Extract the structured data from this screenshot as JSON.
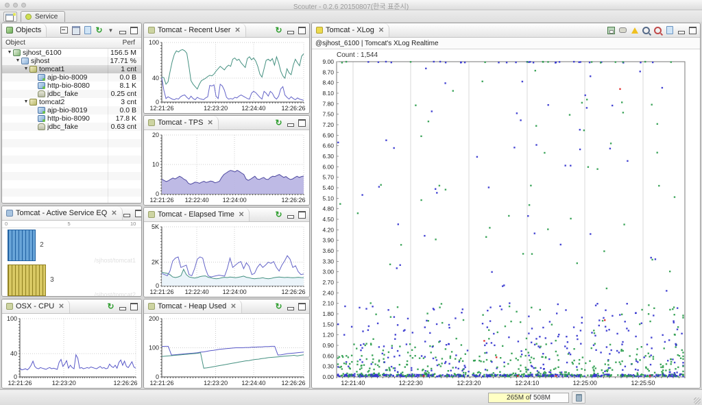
{
  "window": {
    "title": "Scouter - 0.2.6 20150807(한국 표준시)"
  },
  "perspective": {
    "tab_label": "Service"
  },
  "objects_panel": {
    "title": "Objects",
    "columns": {
      "object": "Object",
      "perf": "Perf"
    },
    "tree": [
      {
        "label": "sjhost_6100",
        "perf": "156.5 M",
        "level": 0,
        "expanded": true,
        "icon": "ic-server",
        "selected": false
      },
      {
        "label": "sjhost",
        "perf": "17.71 %",
        "level": 1,
        "expanded": true,
        "icon": "ic-host",
        "selected": false
      },
      {
        "label": "tomcat1",
        "perf": "1 cnt",
        "level": 2,
        "expanded": true,
        "icon": "ic-tomcat",
        "selected": true
      },
      {
        "label": "ajp-bio-8009",
        "perf": "0.0 B",
        "level": 3,
        "icon": "ic-port",
        "selected": false
      },
      {
        "label": "http-bio-8080",
        "perf": "8.1 K",
        "level": 3,
        "icon": "ic-port",
        "selected": false
      },
      {
        "label": "jdbc_fake",
        "perf": "0.25 cnt",
        "level": 3,
        "icon": "ic-db",
        "selected": false
      },
      {
        "label": "tomcat2",
        "perf": "3 cnt",
        "level": 2,
        "expanded": true,
        "icon": "ic-tomcat",
        "selected": false
      },
      {
        "label": "ajp-bio-8019",
        "perf": "0.0 B",
        "level": 3,
        "icon": "ic-port",
        "selected": false
      },
      {
        "label": "http-bio-8090",
        "perf": "17.8 K",
        "level": 3,
        "icon": "ic-port",
        "selected": false
      },
      {
        "label": "jdbc_fake",
        "perf": "0.63 cnt",
        "level": 3,
        "icon": "ic-db",
        "selected": false
      }
    ]
  },
  "views": {
    "recent_user": {
      "title": "Tomcat - Recent User"
    },
    "tps": {
      "title": "Tomcat - TPS"
    },
    "elapsed": {
      "title": "Tomcat - Elapsed Time"
    },
    "heap": {
      "title": "Tomcat - Heap Used"
    },
    "eq": {
      "title": "Tomcat - Active Service EQ"
    },
    "cpu": {
      "title": "OSX - CPU"
    },
    "xlog": {
      "title": "Tomcat - XLog",
      "subtitle": "@sjhost_6100 | Tomcat's XLog Realtime",
      "count_label": "Count : 1,544"
    }
  },
  "status_bar": {
    "heap_label": "265M of 508M"
  },
  "chart_data": {
    "recent_user": {
      "type": "line",
      "ylim": [
        0,
        100
      ],
      "yticks": [
        {
          "v": 0,
          "label": "0"
        },
        {
          "v": 40,
          "label": "40"
        },
        {
          "v": 100,
          "label": "100"
        }
      ],
      "xticks": [
        {
          "f": 0,
          "label": "12:21:26"
        },
        {
          "f": 0.38,
          "label": "12:23:20"
        },
        {
          "f": 0.647,
          "label": "12:24:40"
        },
        {
          "f": 1,
          "label": "12:26:26"
        }
      ],
      "series": [
        {
          "name": "tomcat-recent-user-a",
          "color": "#449080",
          "values": [
            42,
            41,
            30,
            34,
            52,
            68,
            80,
            86,
            84,
            87,
            88,
            86,
            82,
            60,
            36,
            30,
            26,
            22,
            30,
            36,
            38,
            40,
            43,
            45,
            44,
            47,
            52,
            56,
            60,
            57,
            54,
            59,
            62,
            60,
            72,
            74,
            70,
            72,
            66,
            62,
            58,
            73,
            76,
            71,
            74,
            69,
            60,
            47,
            42,
            56,
            70,
            72,
            69,
            73,
            62,
            76,
            66,
            52,
            44,
            40,
            56,
            49,
            46,
            62,
            72,
            66,
            61,
            77,
            81
          ]
        },
        {
          "name": "tomcat-recent-user-b",
          "color": "#6464c8",
          "values": [
            41,
            20,
            6,
            9,
            7,
            5,
            4,
            6,
            5,
            9,
            11,
            12,
            8,
            5,
            10,
            6,
            4,
            8,
            6,
            5,
            4,
            7,
            9,
            28,
            27,
            29,
            10,
            6,
            30,
            27,
            20,
            8,
            5,
            6,
            5,
            8,
            7,
            10,
            12,
            10,
            8,
            6,
            5,
            15,
            18,
            16,
            12,
            8,
            5,
            18,
            15,
            10,
            18,
            15,
            8,
            5,
            10,
            22,
            26,
            12,
            8,
            5,
            9,
            6,
            4,
            7,
            5,
            4,
            3
          ]
        }
      ]
    },
    "tps": {
      "type": "area",
      "ylim": [
        0,
        20
      ],
      "yticks": [
        {
          "v": 0,
          "label": "0"
        },
        {
          "v": 10,
          "label": "10"
        },
        {
          "v": 20,
          "label": "20"
        }
      ],
      "xticks": [
        {
          "f": 0,
          "label": "12:21:26"
        },
        {
          "f": 0.247,
          "label": "12:22:40"
        },
        {
          "f": 0.513,
          "label": "12:24:00"
        },
        {
          "f": 1,
          "label": "12:26:26"
        }
      ],
      "series": [
        {
          "name": "tps",
          "color": "#4f4aa0",
          "fill": "#b7b3e2",
          "values": [
            5,
            4.6,
            4.2,
            4.5,
            5,
            5.4,
            5.1,
            5.5,
            6,
            5.6,
            5,
            4.6,
            3.6,
            3.3,
            3.6,
            4,
            3.9,
            3.6,
            4,
            4.3,
            3.9,
            4.1,
            4.4,
            4.2,
            3.8,
            4,
            4.3,
            5.6,
            6.6,
            7.1,
            7.6,
            8,
            7.8,
            7.5,
            8,
            7.6,
            7.1,
            6.6,
            5.1,
            4.6,
            5,
            5.5,
            6,
            5.1,
            4.9,
            5.3,
            5.6,
            5,
            4.9,
            5.6,
            6,
            5.9,
            6.3,
            6.6,
            6.1,
            5.6,
            5.9,
            5.3,
            4.9,
            5.1,
            5.6,
            6,
            5.6,
            5.9,
            6.1
          ]
        }
      ]
    },
    "elapsed": {
      "type": "line",
      "ylim": [
        0,
        5000
      ],
      "yticks": [
        {
          "v": 0,
          "label": "0"
        },
        {
          "v": 2000,
          "label": "2K"
        },
        {
          "v": 5000,
          "label": "5K"
        }
      ],
      "xticks": [
        {
          "f": 0,
          "label": "12:21:26"
        },
        {
          "f": 0.247,
          "label": "12:22:40"
        },
        {
          "f": 0.513,
          "label": "12:24:00"
        },
        {
          "f": 1,
          "label": "12:26:26"
        }
      ],
      "series": [
        {
          "name": "elapsed-teal",
          "color": "#449080",
          "fill": "#e9f3f9",
          "values": [
            1150,
            1100,
            1050,
            950,
            750,
            700,
            750,
            850,
            1400,
            950,
            750,
            700,
            650,
            700,
            780,
            820,
            840,
            720,
            680,
            620,
            600,
            620,
            680,
            720,
            700,
            740,
            720,
            680,
            720,
            760,
            820,
            720,
            680,
            620,
            600,
            620,
            640,
            680,
            620,
            600,
            620,
            680,
            720,
            740,
            720,
            700,
            720,
            700,
            680,
            700,
            720,
            700,
            690
          ]
        },
        {
          "name": "elapsed-purple",
          "color": "#6464c8",
          "values": [
            1050,
            950,
            850,
            1250,
            2100,
            2350,
            2450,
            1550,
            1650,
            1750,
            950,
            850,
            1450,
            2250,
            2450,
            2350,
            1450,
            850,
            750,
            800,
            850,
            900,
            860,
            820,
            1450,
            2350,
            1550,
            1750,
            1950,
            2050,
            1450,
            1950,
            1650,
            950,
            1050,
            1550,
            1850,
            1550,
            1750,
            2000,
            1900,
            2050,
            1550,
            1250,
            1750,
            2100,
            2550,
            2250,
            1550,
            1700,
            1200,
            950,
            1000
          ]
        }
      ]
    },
    "heap": {
      "type": "line",
      "ylim": [
        0,
        200
      ],
      "yticks": [
        {
          "v": 0,
          "label": "0"
        },
        {
          "v": 100,
          "label": "100"
        },
        {
          "v": 200,
          "label": "200"
        }
      ],
      "xticks": [
        {
          "f": 0,
          "label": "12:21:26"
        },
        {
          "f": 0.38,
          "label": "12:23:20"
        },
        {
          "f": 0.647,
          "label": "12:24:40"
        },
        {
          "f": 1,
          "label": "12:26:26"
        }
      ],
      "series": [
        {
          "name": "heap-tomcat1",
          "color": "#5858c8",
          "values": [
            104,
            105,
            105,
            75,
            76,
            77,
            78,
            79,
            80,
            81,
            82,
            83,
            85,
            86,
            88,
            90,
            91,
            93,
            95,
            96,
            97,
            98,
            99,
            100,
            100,
            100,
            101,
            101,
            102,
            102,
            103,
            103,
            104,
            104,
            105,
            105,
            75,
            76,
            78,
            80,
            81,
            82,
            83,
            84,
            85
          ]
        },
        {
          "name": "heap-tomcat2",
          "color": "#449080",
          "values": [
            70,
            71,
            72,
            73,
            74,
            75,
            76,
            77,
            78,
            79,
            80,
            81,
            83,
            30,
            31,
            33,
            35,
            37,
            39,
            41,
            43,
            45,
            47,
            49,
            51,
            53,
            55,
            56,
            58,
            60,
            61,
            63,
            64,
            66,
            67,
            68,
            69,
            70,
            71,
            72,
            73,
            74,
            72,
            74,
            76
          ]
        }
      ]
    },
    "cpu": {
      "type": "line",
      "ylim": [
        0,
        100
      ],
      "yticks": [
        {
          "v": 0,
          "label": "0"
        },
        {
          "v": 40,
          "label": "40"
        },
        {
          "v": 100,
          "label": "100"
        }
      ],
      "xticks": [
        {
          "f": 0,
          "label": "12:21:26"
        },
        {
          "f": 0.38,
          "label": "12:23:20"
        },
        {
          "f": 1,
          "label": "12:26:26"
        }
      ],
      "series": [
        {
          "name": "osx-cpu",
          "color": "#5858c8",
          "values": [
            15,
            12,
            13,
            14,
            12,
            15,
            20,
            27,
            18,
            15,
            14,
            16,
            15,
            14,
            13,
            15,
            16,
            14,
            15,
            14,
            13,
            25,
            30,
            18,
            22,
            28,
            15,
            20,
            16,
            14,
            38,
            32,
            15,
            16,
            14,
            15,
            16,
            15,
            17,
            16,
            15,
            14,
            16,
            18,
            15,
            16,
            14,
            15,
            22,
            18,
            16,
            20,
            15,
            25,
            29,
            20,
            27,
            18,
            16,
            21,
            26,
            17,
            15
          ]
        }
      ]
    },
    "eq": {
      "type": "bar",
      "orientation": "horizontal",
      "axis": {
        "min": 0,
        "max": 10,
        "ticks": [
          0,
          5,
          10
        ]
      },
      "bars": [
        {
          "value_label": "2",
          "extent": 2.2,
          "fill": "#68a4d8",
          "stripe": "#1f5fa0",
          "instance": "/sjhost/tomcat1"
        },
        {
          "value_label": "3",
          "extent": 3.0,
          "fill": "#d9c964",
          "stripe": "#8f7f1f",
          "instance": "/sjhost/tomcat2"
        }
      ],
      "watermarks": [
        "/sjhost/tomcat1",
        "/sjhost/tomcat2"
      ]
    },
    "xlog": {
      "type": "scatter",
      "count": 1544,
      "ylim": [
        0,
        9
      ],
      "ystep": 0.3,
      "xticks": [
        {
          "f": 0.047,
          "label": "12:21:40"
        },
        {
          "f": 0.213,
          "label": "12:22:30"
        },
        {
          "f": 0.38,
          "label": "12:23:20"
        },
        {
          "f": 0.547,
          "label": "12:24:10"
        },
        {
          "f": 0.713,
          "label": "12:25:00"
        },
        {
          "f": 0.88,
          "label": "12:25:50"
        }
      ],
      "palette": {
        "blue": "#3535cf",
        "green": "#2f9e4f",
        "red": "#e02020"
      },
      "seed": 7,
      "clusters": [
        0.02,
        0.05,
        0.09,
        0.12,
        0.16,
        0.2,
        0.24,
        0.27,
        0.3,
        0.34,
        0.38,
        0.42,
        0.46,
        0.5,
        0.54,
        0.57,
        0.6,
        0.64,
        0.68,
        0.72,
        0.76,
        0.8,
        0.84,
        0.88,
        0.92,
        0.96,
        0.99
      ],
      "bands": [
        {
          "count": 42,
          "ymin": 8.97,
          "ymax": 9.0,
          "colors": [
            "blue",
            "blue",
            "blue",
            "green"
          ],
          "clustered": false,
          "skew": 1
        },
        {
          "count": 105,
          "ymin": 1.3,
          "ymax": 8.85,
          "colors": [
            "blue",
            "green"
          ],
          "clustered": false,
          "skew": 1
        },
        {
          "count": 150,
          "ymin": 0.9,
          "ymax": 2.1,
          "colors": [
            "blue",
            "blue",
            "green"
          ],
          "clustered": true,
          "skew": 1.3
        },
        {
          "count": 430,
          "ymin": 0.06,
          "ymax": 0.95,
          "colors": [
            "green",
            "green",
            "blue"
          ],
          "clustered": true,
          "skew": 1.7
        },
        {
          "count": 520,
          "ymin": 0.01,
          "ymax": 0.07,
          "colors": [
            "blue",
            "green",
            "blue",
            "green",
            "blue"
          ],
          "clustered": true,
          "skew": 1
        }
      ],
      "red_points": [
        [
          0.424,
          1.03
        ],
        [
          0.459,
          0.56
        ],
        [
          0.814,
          8.22
        ],
        [
          0.25,
          0.03
        ],
        [
          0.52,
          0.03
        ],
        [
          0.63,
          0.03
        ],
        [
          0.77,
          1.62
        ],
        [
          0.9,
          0.03
        ]
      ]
    }
  }
}
